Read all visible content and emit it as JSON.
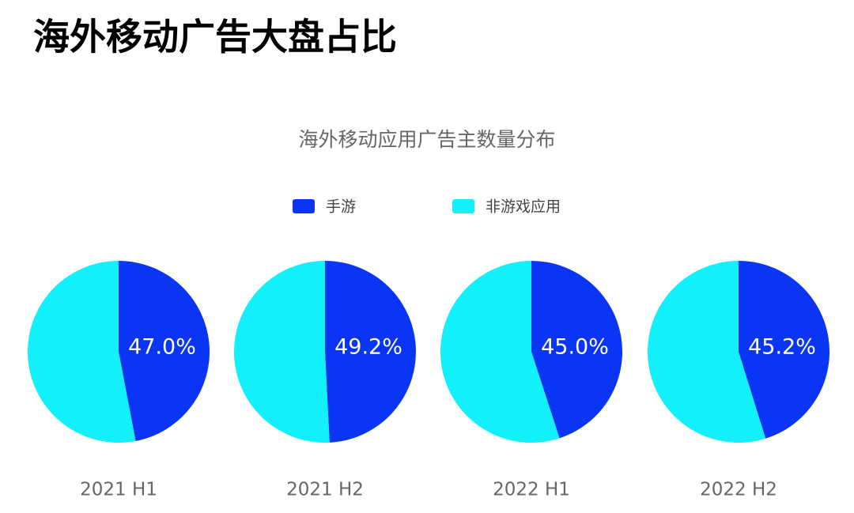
{
  "title": "海外移动广告大盘占比",
  "subtitle": "海外移动应用广告主数量分布",
  "chart_data": [
    {
      "type": "pie",
      "title": "2021 H1",
      "categories": [
        "手游",
        "非游戏应用"
      ],
      "colors": [
        "#0b35f4",
        "#12f1fb"
      ],
      "values": [
        47.0,
        53.0
      ],
      "value_labels": [
        "47.0%",
        null
      ]
    },
    {
      "type": "pie",
      "title": "2021 H2",
      "categories": [
        "手游",
        "非游戏应用"
      ],
      "colors": [
        "#0b35f4",
        "#12f1fb"
      ],
      "values": [
        49.2,
        50.8
      ],
      "value_labels": [
        "49.2%",
        null
      ]
    },
    {
      "type": "pie",
      "title": "2022 H1",
      "categories": [
        "手游",
        "非游戏应用"
      ],
      "colors": [
        "#0b35f4",
        "#12f1fb"
      ],
      "values": [
        45.0,
        55.0
      ],
      "value_labels": [
        "45.0%",
        null
      ]
    },
    {
      "type": "pie",
      "title": "2022 H2",
      "categories": [
        "手游",
        "非游戏应用"
      ],
      "colors": [
        "#0b35f4",
        "#12f1fb"
      ],
      "values": [
        45.2,
        54.8
      ],
      "value_labels": [
        "45.2%",
        null
      ]
    }
  ]
}
